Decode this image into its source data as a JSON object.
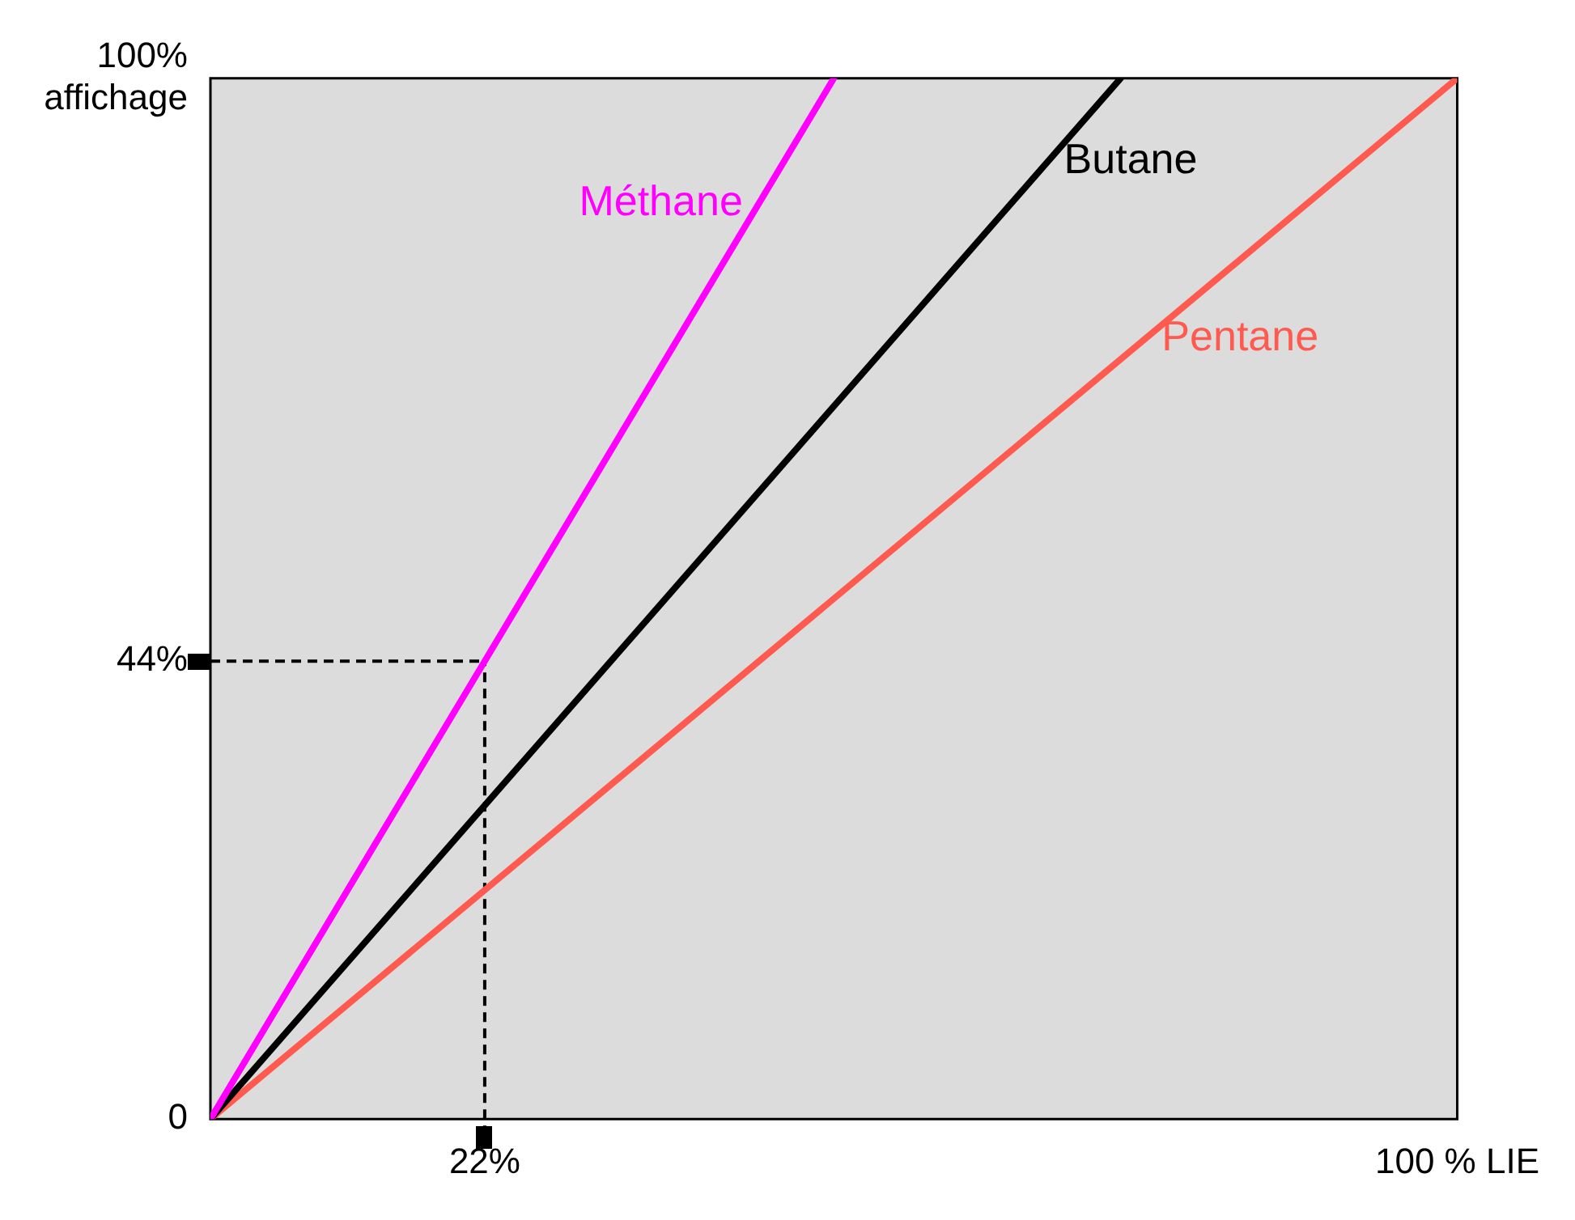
{
  "chart_data": {
    "type": "line",
    "xlim": [
      0,
      100
    ],
    "ylim": [
      0,
      100
    ],
    "xticks": [
      {
        "value": 22,
        "label": "22%"
      },
      {
        "value": 100,
        "label": "100 % LIE"
      }
    ],
    "yticks": [
      {
        "value": 0,
        "label": "0"
      },
      {
        "value": 44,
        "label": "44%"
      },
      {
        "value": 100,
        "label": "100% affichage"
      }
    ],
    "series": [
      {
        "name": "Méthane",
        "color": "#ff00ff",
        "x": [
          0,
          22,
          50
        ],
        "values": [
          0,
          44,
          100
        ]
      },
      {
        "name": "Butane",
        "color": "#000000",
        "x": [
          0,
          73
        ],
        "values": [
          0,
          100
        ]
      },
      {
        "name": "Pentane",
        "color": "#ff5a50",
        "x": [
          0,
          100
        ],
        "values": [
          0,
          100
        ]
      }
    ],
    "ref_lines": [
      {
        "axis": "x",
        "value": 22,
        "color": "#000000",
        "line_style": "dashed"
      },
      {
        "axis": "y",
        "value": 44,
        "color": "#000000",
        "line_style": "dashed"
      }
    ],
    "legend": false,
    "marker": "none",
    "line_style": "solid"
  }
}
